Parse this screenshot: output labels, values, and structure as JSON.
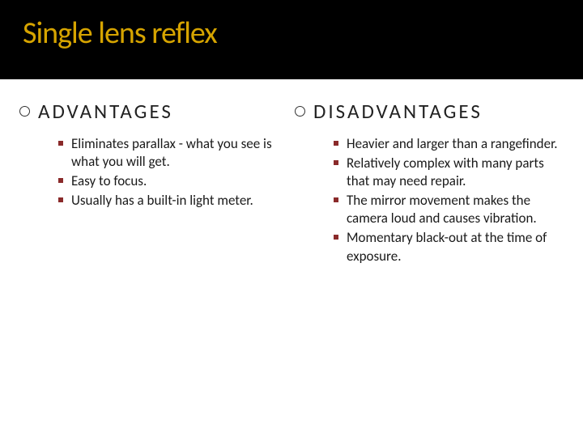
{
  "title": "Single lens reflex",
  "title_color": "#d6a400",
  "title_bg": "#000000",
  "heading_bullet_border": "#333333",
  "item_bullet_color": "#8a2a2a",
  "text_color": "#1a1a1a",
  "background_color": "#ffffff",
  "columns": {
    "left": {
      "heading": "ADVANTAGES",
      "items": [
        "Eliminates parallax - what you see is what you will get.",
        "Easy to focus.",
        "Usually has a built-in light meter."
      ]
    },
    "right": {
      "heading": "DISADVANTAGES",
      "items": [
        "Heavier and larger than a rangefinder.",
        "Relatively complex with many parts that may need repair.",
        "The mirror movement makes the camera loud and causes vibration.",
        "Momentary black-out at the time of exposure."
      ]
    }
  }
}
